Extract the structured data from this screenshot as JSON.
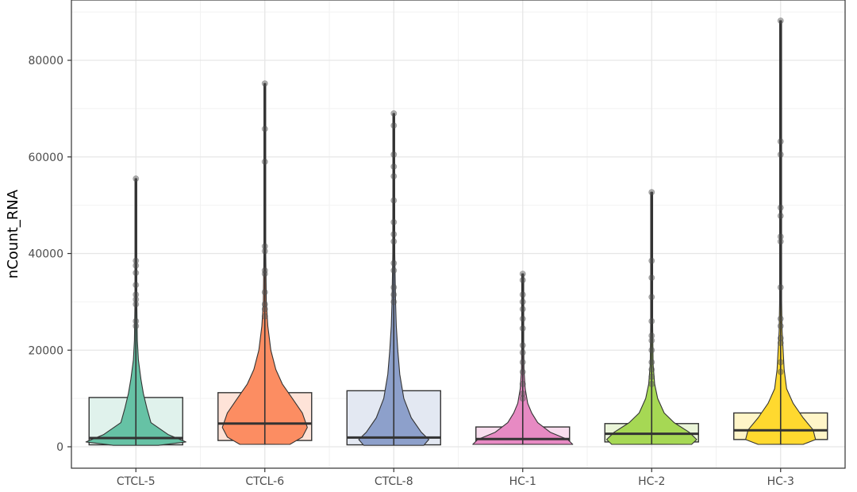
{
  "chart_data": {
    "type": "box-violin",
    "title": "",
    "xlabel": "",
    "ylabel": "nCount_RNA",
    "ylim": [
      -4000,
      92000
    ],
    "yticks": [
      0,
      20000,
      40000,
      60000,
      80000
    ],
    "ytick_labels": [
      "0",
      "20000",
      "40000",
      "60000",
      "80000"
    ],
    "grid": true,
    "legend": "none",
    "categories": [
      "CTCL-5",
      "CTCL-6",
      "CTCL-8",
      "HC-1",
      "HC-2",
      "HC-3"
    ],
    "groups": [
      {
        "name": "CTCL-5",
        "color": "#66C2A5",
        "box_fill": "#E0F2EC",
        "box": {
          "q1": 400,
          "median": 1800,
          "q3": 10200
        },
        "min": 300,
        "max": 55500,
        "violin": [
          [
            300,
            0.45
          ],
          [
            1000,
            1.0
          ],
          [
            2500,
            0.65
          ],
          [
            5000,
            0.3
          ],
          [
            8000,
            0.22
          ],
          [
            11000,
            0.15
          ],
          [
            14000,
            0.1
          ],
          [
            18000,
            0.05
          ],
          [
            22000,
            0.03
          ],
          [
            30000,
            0.015
          ],
          [
            40000,
            0.01
          ],
          [
            55500,
            0.005
          ]
        ],
        "outliers": [
          55500,
          38500,
          37500,
          36000,
          33500,
          31500,
          30500,
          29500,
          26000,
          25000
        ]
      },
      {
        "name": "CTCL-6",
        "color": "#FC8D62",
        "box_fill": "#FEE3D8",
        "box": {
          "q1": 1300,
          "median": 4800,
          "q3": 11200
        },
        "min": 500,
        "max": 75200,
        "violin": [
          [
            500,
            0.5
          ],
          [
            2000,
            0.75
          ],
          [
            4000,
            0.85
          ],
          [
            7000,
            0.75
          ],
          [
            10000,
            0.55
          ],
          [
            13000,
            0.35
          ],
          [
            16000,
            0.22
          ],
          [
            20000,
            0.12
          ],
          [
            25000,
            0.06
          ],
          [
            30000,
            0.03
          ],
          [
            40000,
            0.012
          ],
          [
            60000,
            0.008
          ],
          [
            75200,
            0.005
          ]
        ],
        "outliers": [
          75200,
          65800,
          59000,
          41500,
          40500,
          36500,
          35800,
          32000,
          29500,
          28500,
          27000
        ]
      },
      {
        "name": "CTCL-8",
        "color": "#8DA0CB",
        "box_fill": "#E3E8F2",
        "box": {
          "q1": 400,
          "median": 1900,
          "q3": 11600
        },
        "min": 300,
        "max": 69000,
        "violin": [
          [
            300,
            0.6
          ],
          [
            1500,
            0.7
          ],
          [
            3000,
            0.55
          ],
          [
            6000,
            0.35
          ],
          [
            10000,
            0.2
          ],
          [
            15000,
            0.12
          ],
          [
            20000,
            0.08
          ],
          [
            25000,
            0.05
          ],
          [
            30000,
            0.035
          ],
          [
            40000,
            0.02
          ],
          [
            55000,
            0.01
          ],
          [
            69000,
            0.005
          ]
        ],
        "outliers": [
          69000,
          66500,
          60500,
          58000,
          56000,
          51000,
          46500,
          44000,
          42500,
          38000,
          36500,
          33000,
          31500,
          30000
        ]
      },
      {
        "name": "HC-1",
        "color": "#E78AC3",
        "box_fill": "#F8DDEE",
        "box": {
          "q1": 800,
          "median": 1600,
          "q3": 4100
        },
        "min": 500,
        "max": 35800,
        "violin": [
          [
            500,
            1.0
          ],
          [
            1500,
            0.9
          ],
          [
            3000,
            0.55
          ],
          [
            5000,
            0.3
          ],
          [
            7000,
            0.18
          ],
          [
            9000,
            0.1
          ],
          [
            12000,
            0.05
          ],
          [
            16000,
            0.025
          ],
          [
            22000,
            0.012
          ],
          [
            30000,
            0.008
          ],
          [
            35800,
            0.005
          ]
        ],
        "outliers": [
          35800,
          34500,
          31500,
          30000,
          28500,
          26500,
          24500,
          21000,
          19500,
          17500,
          15500,
          13000,
          11000,
          10000
        ]
      },
      {
        "name": "HC-2",
        "color": "#A6D854",
        "box_fill": "#EAF5D8",
        "box": {
          "q1": 1000,
          "median": 2700,
          "q3": 4800
        },
        "min": 500,
        "max": 52700,
        "violin": [
          [
            500,
            0.8
          ],
          [
            1500,
            0.9
          ],
          [
            3000,
            0.75
          ],
          [
            5000,
            0.45
          ],
          [
            7000,
            0.25
          ],
          [
            10000,
            0.12
          ],
          [
            13000,
            0.06
          ],
          [
            17000,
            0.03
          ],
          [
            25000,
            0.015
          ],
          [
            35000,
            0.01
          ],
          [
            52700,
            0.005
          ]
        ],
        "outliers": [
          52700,
          38500,
          35000,
          31000,
          26000,
          23000,
          22000,
          20000,
          17500,
          16000,
          14500,
          13000
        ]
      },
      {
        "name": "HC-3",
        "color": "#FFD92F",
        "box_fill": "#FFF5C8",
        "box": {
          "q1": 1500,
          "median": 3400,
          "q3": 7000
        },
        "min": 500,
        "max": 88200,
        "violin": [
          [
            500,
            0.45
          ],
          [
            1500,
            0.7
          ],
          [
            3500,
            0.65
          ],
          [
            6000,
            0.45
          ],
          [
            9000,
            0.25
          ],
          [
            12000,
            0.12
          ],
          [
            16000,
            0.07
          ],
          [
            20000,
            0.05
          ],
          [
            24000,
            0.03
          ],
          [
            30000,
            0.015
          ],
          [
            45000,
            0.01
          ],
          [
            65000,
            0.006
          ],
          [
            88200,
            0.004
          ]
        ],
        "outliers": [
          88200,
          63200,
          60500,
          49500,
          47800,
          43500,
          42500,
          33000,
          26500,
          25000,
          22500,
          21500,
          17500,
          15500
        ]
      }
    ]
  }
}
